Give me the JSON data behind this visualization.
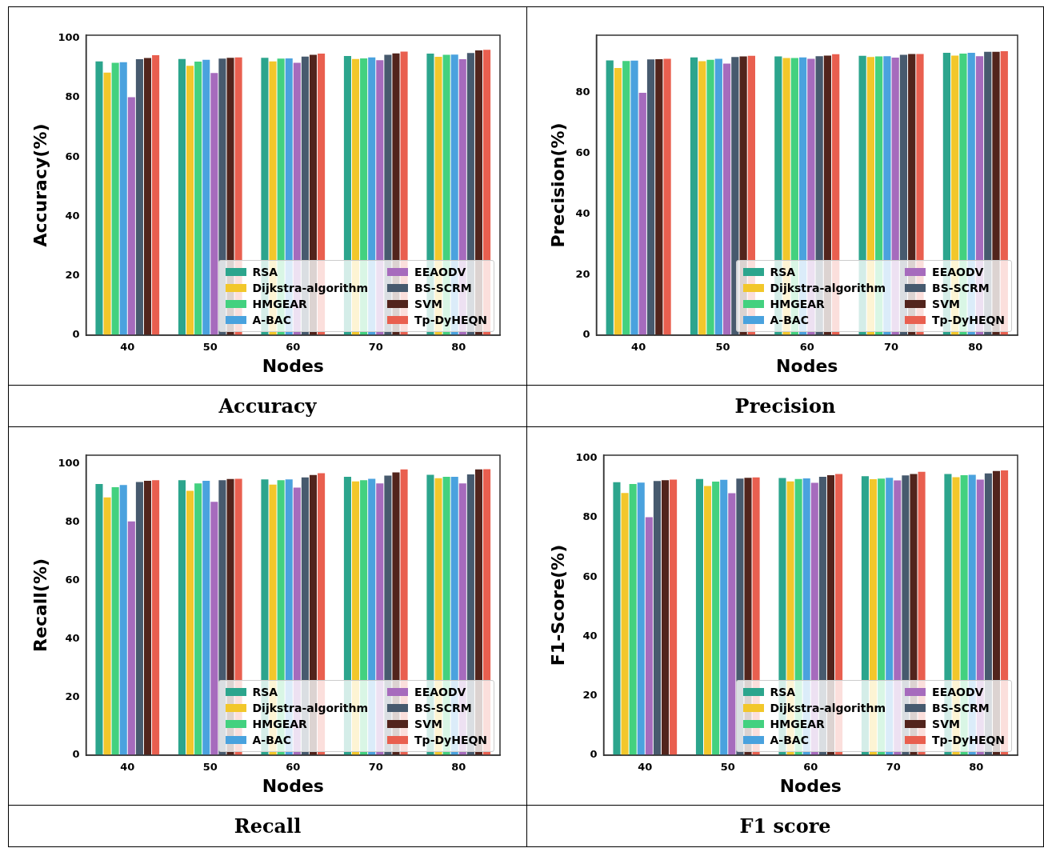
{
  "chart_data": [
    {
      "type": "bar",
      "xlabel": "Nodes",
      "ylabel": "Accuracy(%)",
      "annotations": [
        "Accuracy"
      ],
      "categories": [
        "40",
        "50",
        "60",
        "70",
        "80"
      ],
      "ylim": [
        0,
        101
      ],
      "yticks": [
        0,
        20,
        40,
        60,
        80,
        100
      ],
      "legend": "bottom right",
      "series": [
        {
          "name": "RSA",
          "color": "#2ca58d",
          "values": [
            92.2,
            93.0,
            93.4,
            94.0,
            94.8
          ]
        },
        {
          "name": "Dijkstra-algorithm",
          "color": "#f2c72b",
          "values": [
            88.4,
            90.7,
            92.2,
            93.0,
            93.7
          ]
        },
        {
          "name": "HMGEAR",
          "color": "#43d17f",
          "values": [
            91.7,
            92.1,
            93.1,
            93.2,
            94.4
          ]
        },
        {
          "name": "A-BAC",
          "color": "#4aa2de",
          "values": [
            91.9,
            92.7,
            93.2,
            93.5,
            94.5
          ]
        },
        {
          "name": "EEAODV",
          "color": "#a66bbd",
          "values": [
            80.1,
            88.3,
            91.7,
            92.6,
            92.9
          ]
        },
        {
          "name": "BS-SCRM",
          "color": "#475a6e",
          "values": [
            92.9,
            93.1,
            93.8,
            94.4,
            95.0
          ]
        },
        {
          "name": "SVM",
          "color": "#52241c",
          "values": [
            93.3,
            93.4,
            94.4,
            94.9,
            95.9
          ]
        },
        {
          "name": "Tp-DyHEQN",
          "color": "#e95f4f",
          "values": [
            94.3,
            93.5,
            94.8,
            95.5,
            96.1
          ]
        }
      ]
    },
    {
      "type": "bar",
      "xlabel": "Nodes",
      "ylabel": "Precision(%)",
      "annotations": [
        "Precision"
      ],
      "categories": [
        "40",
        "50",
        "60",
        "70",
        "80"
      ],
      "ylim": [
        0,
        99
      ],
      "yticks": [
        0,
        20,
        40,
        60,
        80
      ],
      "legend": "bottom right",
      "series": [
        {
          "name": "RSA",
          "color": "#2ca58d",
          "values": [
            90.7,
            91.7,
            92.0,
            92.2,
            93.2
          ]
        },
        {
          "name": "Dijkstra-algorithm",
          "color": "#f2c72b",
          "values": [
            88.2,
            90.4,
            91.5,
            91.8,
            92.3
          ]
        },
        {
          "name": "HMGEAR",
          "color": "#43d17f",
          "values": [
            90.5,
            90.9,
            91.5,
            92.0,
            92.9
          ]
        },
        {
          "name": "A-BAC",
          "color": "#4aa2de",
          "values": [
            90.6,
            91.2,
            91.7,
            92.1,
            93.2
          ]
        },
        {
          "name": "EEAODV",
          "color": "#a66bbd",
          "values": [
            80.0,
            89.6,
            91.2,
            91.6,
            92.1
          ]
        },
        {
          "name": "BS-SCRM",
          "color": "#475a6e",
          "values": [
            91.0,
            91.8,
            92.1,
            92.5,
            93.5
          ]
        },
        {
          "name": "SVM",
          "color": "#52241c",
          "values": [
            91.1,
            92.0,
            92.3,
            92.8,
            93.5
          ]
        },
        {
          "name": "Tp-DyHEQN",
          "color": "#e95f4f",
          "values": [
            91.2,
            92.2,
            92.7,
            92.8,
            93.7
          ]
        }
      ]
    },
    {
      "type": "bar",
      "xlabel": "Nodes",
      "ylabel": "Recall(%)",
      "annotations": [
        "Recall"
      ],
      "categories": [
        "40",
        "50",
        "60",
        "70",
        "80"
      ],
      "ylim": [
        0,
        103
      ],
      "yticks": [
        0,
        20,
        40,
        60,
        80,
        100
      ],
      "legend": "bottom right",
      "series": [
        {
          "name": "RSA",
          "color": "#2ca58d",
          "values": [
            93.1,
            94.4,
            94.7,
            95.6,
            96.3
          ]
        },
        {
          "name": "Dijkstra-algorithm",
          "color": "#f2c72b",
          "values": [
            88.5,
            90.8,
            92.9,
            94.0,
            95.1
          ]
        },
        {
          "name": "HMGEAR",
          "color": "#43d17f",
          "values": [
            92.0,
            93.3,
            94.4,
            94.4,
            95.6
          ]
        },
        {
          "name": "A-BAC",
          "color": "#4aa2de",
          "values": [
            92.8,
            94.2,
            94.7,
            94.9,
            95.6
          ]
        },
        {
          "name": "EEAODV",
          "color": "#a66bbd",
          "values": [
            80.3,
            87.0,
            91.9,
            93.3,
            93.3
          ]
        },
        {
          "name": "BS-SCRM",
          "color": "#475a6e",
          "values": [
            93.8,
            94.4,
            95.4,
            96.0,
            96.4
          ]
        },
        {
          "name": "SVM",
          "color": "#52241c",
          "values": [
            94.2,
            94.8,
            96.2,
            97.1,
            98.1
          ]
        },
        {
          "name": "Tp-DyHEQN",
          "color": "#e95f4f",
          "values": [
            94.4,
            94.9,
            96.8,
            98.1,
            98.2
          ]
        }
      ]
    },
    {
      "type": "bar",
      "xlabel": "Nodes",
      "ylabel": "F1-Score(%)",
      "annotations": [
        "F1 score"
      ],
      "categories": [
        "40",
        "50",
        "60",
        "70",
        "80"
      ],
      "ylim": [
        0,
        101
      ],
      "yticks": [
        0,
        20,
        40,
        60,
        80,
        100
      ],
      "legend": "bottom right",
      "series": [
        {
          "name": "RSA",
          "color": "#2ca58d",
          "values": [
            91.9,
            93.0,
            93.3,
            93.9,
            94.7
          ]
        },
        {
          "name": "Dijkstra-algorithm",
          "color": "#f2c72b",
          "values": [
            88.3,
            90.6,
            92.2,
            92.9,
            93.6
          ]
        },
        {
          "name": "HMGEAR",
          "color": "#43d17f",
          "values": [
            91.3,
            92.1,
            93.0,
            93.1,
            94.3
          ]
        },
        {
          "name": "A-BAC",
          "color": "#4aa2de",
          "values": [
            91.8,
            92.7,
            93.2,
            93.4,
            94.4
          ]
        },
        {
          "name": "EEAODV",
          "color": "#a66bbd",
          "values": [
            80.1,
            88.2,
            91.7,
            92.5,
            92.8
          ]
        },
        {
          "name": "BS-SCRM",
          "color": "#475a6e",
          "values": [
            92.3,
            93.1,
            93.7,
            94.2,
            94.9
          ]
        },
        {
          "name": "SVM",
          "color": "#52241c",
          "values": [
            92.6,
            93.4,
            94.3,
            94.7,
            95.7
          ]
        },
        {
          "name": "Tp-DyHEQN",
          "color": "#e95f4f",
          "values": [
            92.8,
            93.5,
            94.7,
            95.4,
            95.9
          ]
        }
      ]
    }
  ]
}
